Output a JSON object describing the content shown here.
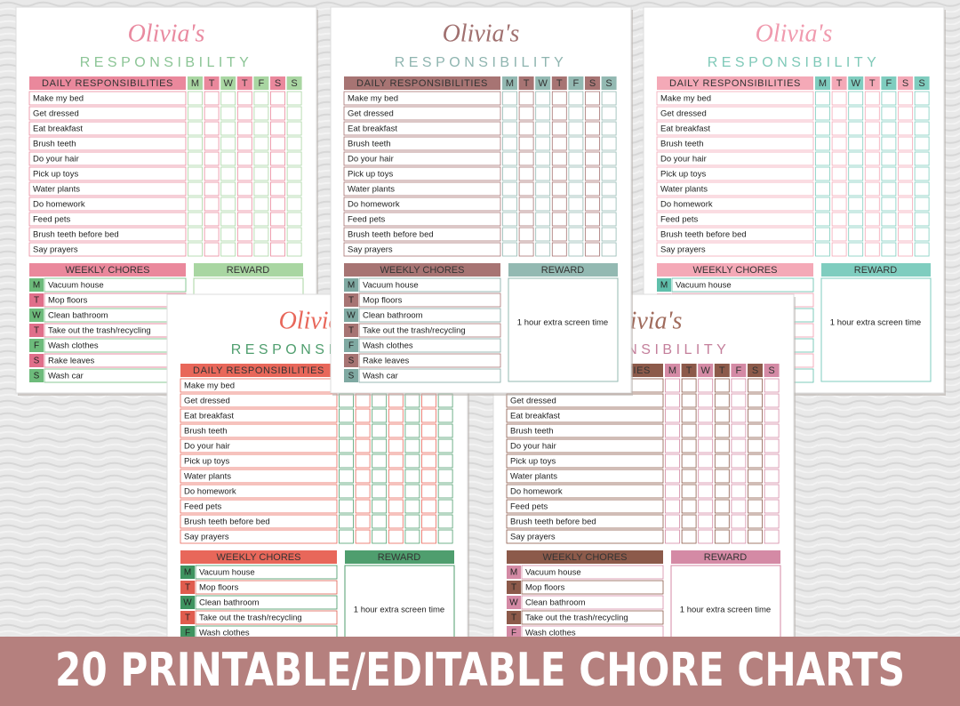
{
  "banner": "20 PRINTABLE/EDITABLE CHORE CHARTS",
  "chart": {
    "name": "Olivia's",
    "subtitle": "RESPONSIBILITY",
    "daily_header": "DAILY RESPONSIBILITIES",
    "days": [
      "M",
      "T",
      "W",
      "T",
      "F",
      "S",
      "S"
    ],
    "tasks": [
      "Make my bed",
      "Get dressed",
      "Eat breakfast",
      "Brush teeth",
      "Do your hair",
      "Pick up toys",
      "Water plants",
      "Do homework",
      "Feed pets",
      "Brush teeth before bed",
      "Say prayers"
    ],
    "weekly_header": "WEEKLY CHORES",
    "reward_header": "REWARD",
    "chores": [
      {
        "day": "M",
        "task": "Vacuum house"
      },
      {
        "day": "T",
        "task": "Mop floors"
      },
      {
        "day": "W",
        "task": "Clean bathroom"
      },
      {
        "day": "T",
        "task": "Take out the trash/recycling"
      },
      {
        "day": "F",
        "task": "Wash clothes"
      },
      {
        "day": "S",
        "task": "Rake leaves"
      },
      {
        "day": "S",
        "task": "Wash car"
      }
    ],
    "reward": "1 hour extra screen time"
  }
}
